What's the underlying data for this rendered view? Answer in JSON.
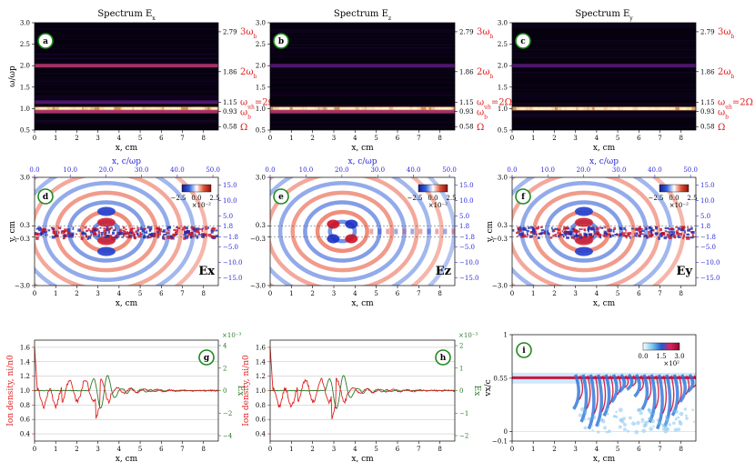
{
  "figure": {
    "palette": {
      "red": "#e02020",
      "blue": "#2a2ad6",
      "green": "#2a7a2a"
    },
    "spectra": [
      {
        "badge": "a",
        "title": "Spectrum E",
        "sub": "x"
      },
      {
        "badge": "b",
        "title": "Spectrum E",
        "sub": "z"
      },
      {
        "badge": "c",
        "title": "Spectrum E",
        "sub": "y"
      }
    ],
    "spectra_right_ticks": [
      "2.79",
      "1.86",
      "1.15",
      "0.93",
      "0.58"
    ],
    "harmonic_labels": [
      "3ω",
      "2ω",
      "ω",
      "=2Ω",
      "ω",
      "Ω"
    ],
    "harmonic_subs": [
      "b",
      "b",
      "uh",
      "b"
    ],
    "fields": [
      {
        "badge": "d",
        "tag": "Ex",
        "cbar_ticks": [
          "−2.5",
          "0.0",
          "2.5"
        ],
        "cbar_exp": "×10⁻²"
      },
      {
        "badge": "e",
        "tag": "Ez",
        "cbar_ticks": [
          "−2.5",
          "0.0",
          "2.5"
        ],
        "cbar_exp": "×10⁻²"
      },
      {
        "badge": "f",
        "tag": "Ey",
        "cbar_ticks": [
          "−2.5",
          "0.0",
          "2.5"
        ],
        "cbar_exp": "×10⁻²"
      }
    ],
    "field_top_ticks": [
      "0.0",
      "10.0",
      "20.0",
      "30.0",
      "40.0",
      "50.0"
    ],
    "field_right_ticks": [
      "15.0",
      "10.0",
      "5.0",
      "1.8",
      "−1.8",
      "−5.0",
      "−10.0",
      "−15.0"
    ],
    "field_left_ticks": [
      "3.0",
      "0.3",
      "−0.3",
      "−3.0"
    ],
    "ion_panels": [
      {
        "badge": "g",
        "right_ticks": [
          "4",
          "2",
          "0",
          "−2",
          "−4"
        ],
        "right_exp": "×10⁻³"
      },
      {
        "badge": "h",
        "right_ticks": [
          "2",
          "1",
          "0",
          "−1",
          "−2"
        ],
        "right_exp": "×10⁻³"
      }
    ],
    "phase_panel": {
      "badge": "i",
      "left_ticks": [
        "1",
        "0.55",
        "0",
        "−0.1"
      ],
      "cbar_ticks": [
        "0.0",
        "1.5",
        "3.0"
      ],
      "cbar_exp": "×10²"
    }
  },
  "chart_data": [
    {
      "type": "heatmap",
      "title": "Spectrum Ex",
      "xlabel": "x, cm",
      "ylabel": "ω/ωp",
      "xlim": [
        0,
        8.7
      ],
      "ylim": [
        0.5,
        3.0
      ],
      "x_ticks": [
        0,
        1,
        2,
        3,
        4,
        5,
        6,
        7,
        8
      ],
      "y_ticks": [
        0.5,
        1.0,
        1.5,
        2.0,
        2.5,
        3.0
      ],
      "bands": [
        {
          "y": 1.0,
          "intensity": 1.0
        },
        {
          "y": 0.93,
          "intensity": 0.6
        },
        {
          "y": 2.0,
          "intensity": 0.45
        },
        {
          "y": 1.15,
          "intensity": 0.15
        }
      ]
    },
    {
      "type": "heatmap",
      "title": "Spectrum Ez",
      "xlabel": "x, cm",
      "ylabel": "",
      "xlim": [
        0,
        8.7
      ],
      "ylim": [
        0.5,
        3.0
      ],
      "x_ticks": [
        0,
        1,
        2,
        3,
        4,
        5,
        6,
        7,
        8
      ],
      "y_ticks": [
        0.5,
        1.0,
        1.5,
        2.0,
        2.5,
        3.0
      ],
      "bands": [
        {
          "y": 1.0,
          "intensity": 1.0
        },
        {
          "y": 0.93,
          "intensity": 0.55
        },
        {
          "y": 2.0,
          "intensity": 0.35
        }
      ]
    },
    {
      "type": "heatmap",
      "title": "Spectrum Ey",
      "xlabel": "x, cm",
      "ylabel": "",
      "xlim": [
        0,
        8.7
      ],
      "ylim": [
        0.5,
        3.0
      ],
      "x_ticks": [
        0,
        1,
        2,
        3,
        4,
        5,
        6,
        7,
        8
      ],
      "y_ticks": [
        0.5,
        1.0,
        1.5,
        2.0,
        2.5,
        3.0
      ],
      "bands": [
        {
          "y": 1.0,
          "intensity": 0.85
        },
        {
          "y": 2.0,
          "intensity": 0.3
        }
      ]
    },
    {
      "type": "heatmap",
      "title": "Ex",
      "xlabel": "x, cm",
      "ylabel": "y, cm",
      "top_xlabel": "x, c/ωp",
      "xlim": [
        0,
        8.7
      ],
      "ylim": [
        -3.0,
        3.0
      ],
      "x_ticks": [
        0,
        1,
        2,
        3,
        4,
        5,
        6,
        7,
        8
      ],
      "center_x": 3.4,
      "colorbar_range": [
        -0.025,
        0.025
      ]
    },
    {
      "type": "heatmap",
      "title": "Ez",
      "xlabel": "x, cm",
      "ylabel": "",
      "top_xlabel": "x, c/ωp",
      "xlim": [
        0,
        8.7
      ],
      "ylim": [
        -3.0,
        3.0
      ],
      "x_ticks": [
        0,
        1,
        2,
        3,
        4,
        5,
        6,
        7,
        8
      ],
      "center_x": 3.4,
      "colorbar_range": [
        -0.025,
        0.025
      ]
    },
    {
      "type": "heatmap",
      "title": "Ey",
      "xlabel": "x, cm",
      "ylabel": "y, cm",
      "top_xlabel": "x, c/ωp",
      "xlim": [
        0,
        8.7
      ],
      "ylim": [
        -3.0,
        3.0
      ],
      "x_ticks": [
        0,
        1,
        2,
        3,
        4,
        5,
        6,
        7,
        8
      ],
      "center_x": 3.4,
      "colorbar_range": [
        -0.025,
        0.025
      ]
    },
    {
      "type": "line",
      "xlabel": "x, cm",
      "ylabel": "Ion density, ni/n0",
      "ylabel_right": "Ex",
      "xlim": [
        0,
        8.7
      ],
      "ylim": [
        0.3,
        1.7
      ],
      "x_ticks": [
        0,
        1,
        2,
        3,
        4,
        5,
        6,
        7,
        8
      ],
      "y_ticks": [
        0.4,
        0.6,
        0.8,
        1.0,
        1.2,
        1.4,
        1.6
      ],
      "series": [
        {
          "name": "ion density",
          "color": "#e02020"
        },
        {
          "name": "Ex",
          "color": "#2a7a2a"
        }
      ]
    },
    {
      "type": "line",
      "xlabel": "x, cm",
      "ylabel": "Ion density, ni/n0",
      "ylabel_right": "Ex",
      "xlim": [
        0,
        8.7
      ],
      "ylim": [
        0.3,
        1.7
      ],
      "x_ticks": [
        0,
        1,
        2,
        3,
        4,
        5,
        6,
        7,
        8
      ],
      "y_ticks": [
        0.4,
        0.6,
        0.8,
        1.0,
        1.2,
        1.4,
        1.6
      ],
      "series": [
        {
          "name": "ion density",
          "color": "#e02020"
        },
        {
          "name": "Ex",
          "color": "#2a7a2a"
        }
      ]
    },
    {
      "type": "heatmap",
      "xlabel": "x, cm",
      "ylabel": "vx/c",
      "xlim": [
        0,
        8.7
      ],
      "ylim": [
        -0.1,
        1.0
      ],
      "x_ticks": [
        0,
        1,
        2,
        3,
        4,
        5,
        6,
        7,
        8
      ],
      "beam_v": 0.55,
      "colorbar_range": [
        0,
        300
      ]
    }
  ]
}
